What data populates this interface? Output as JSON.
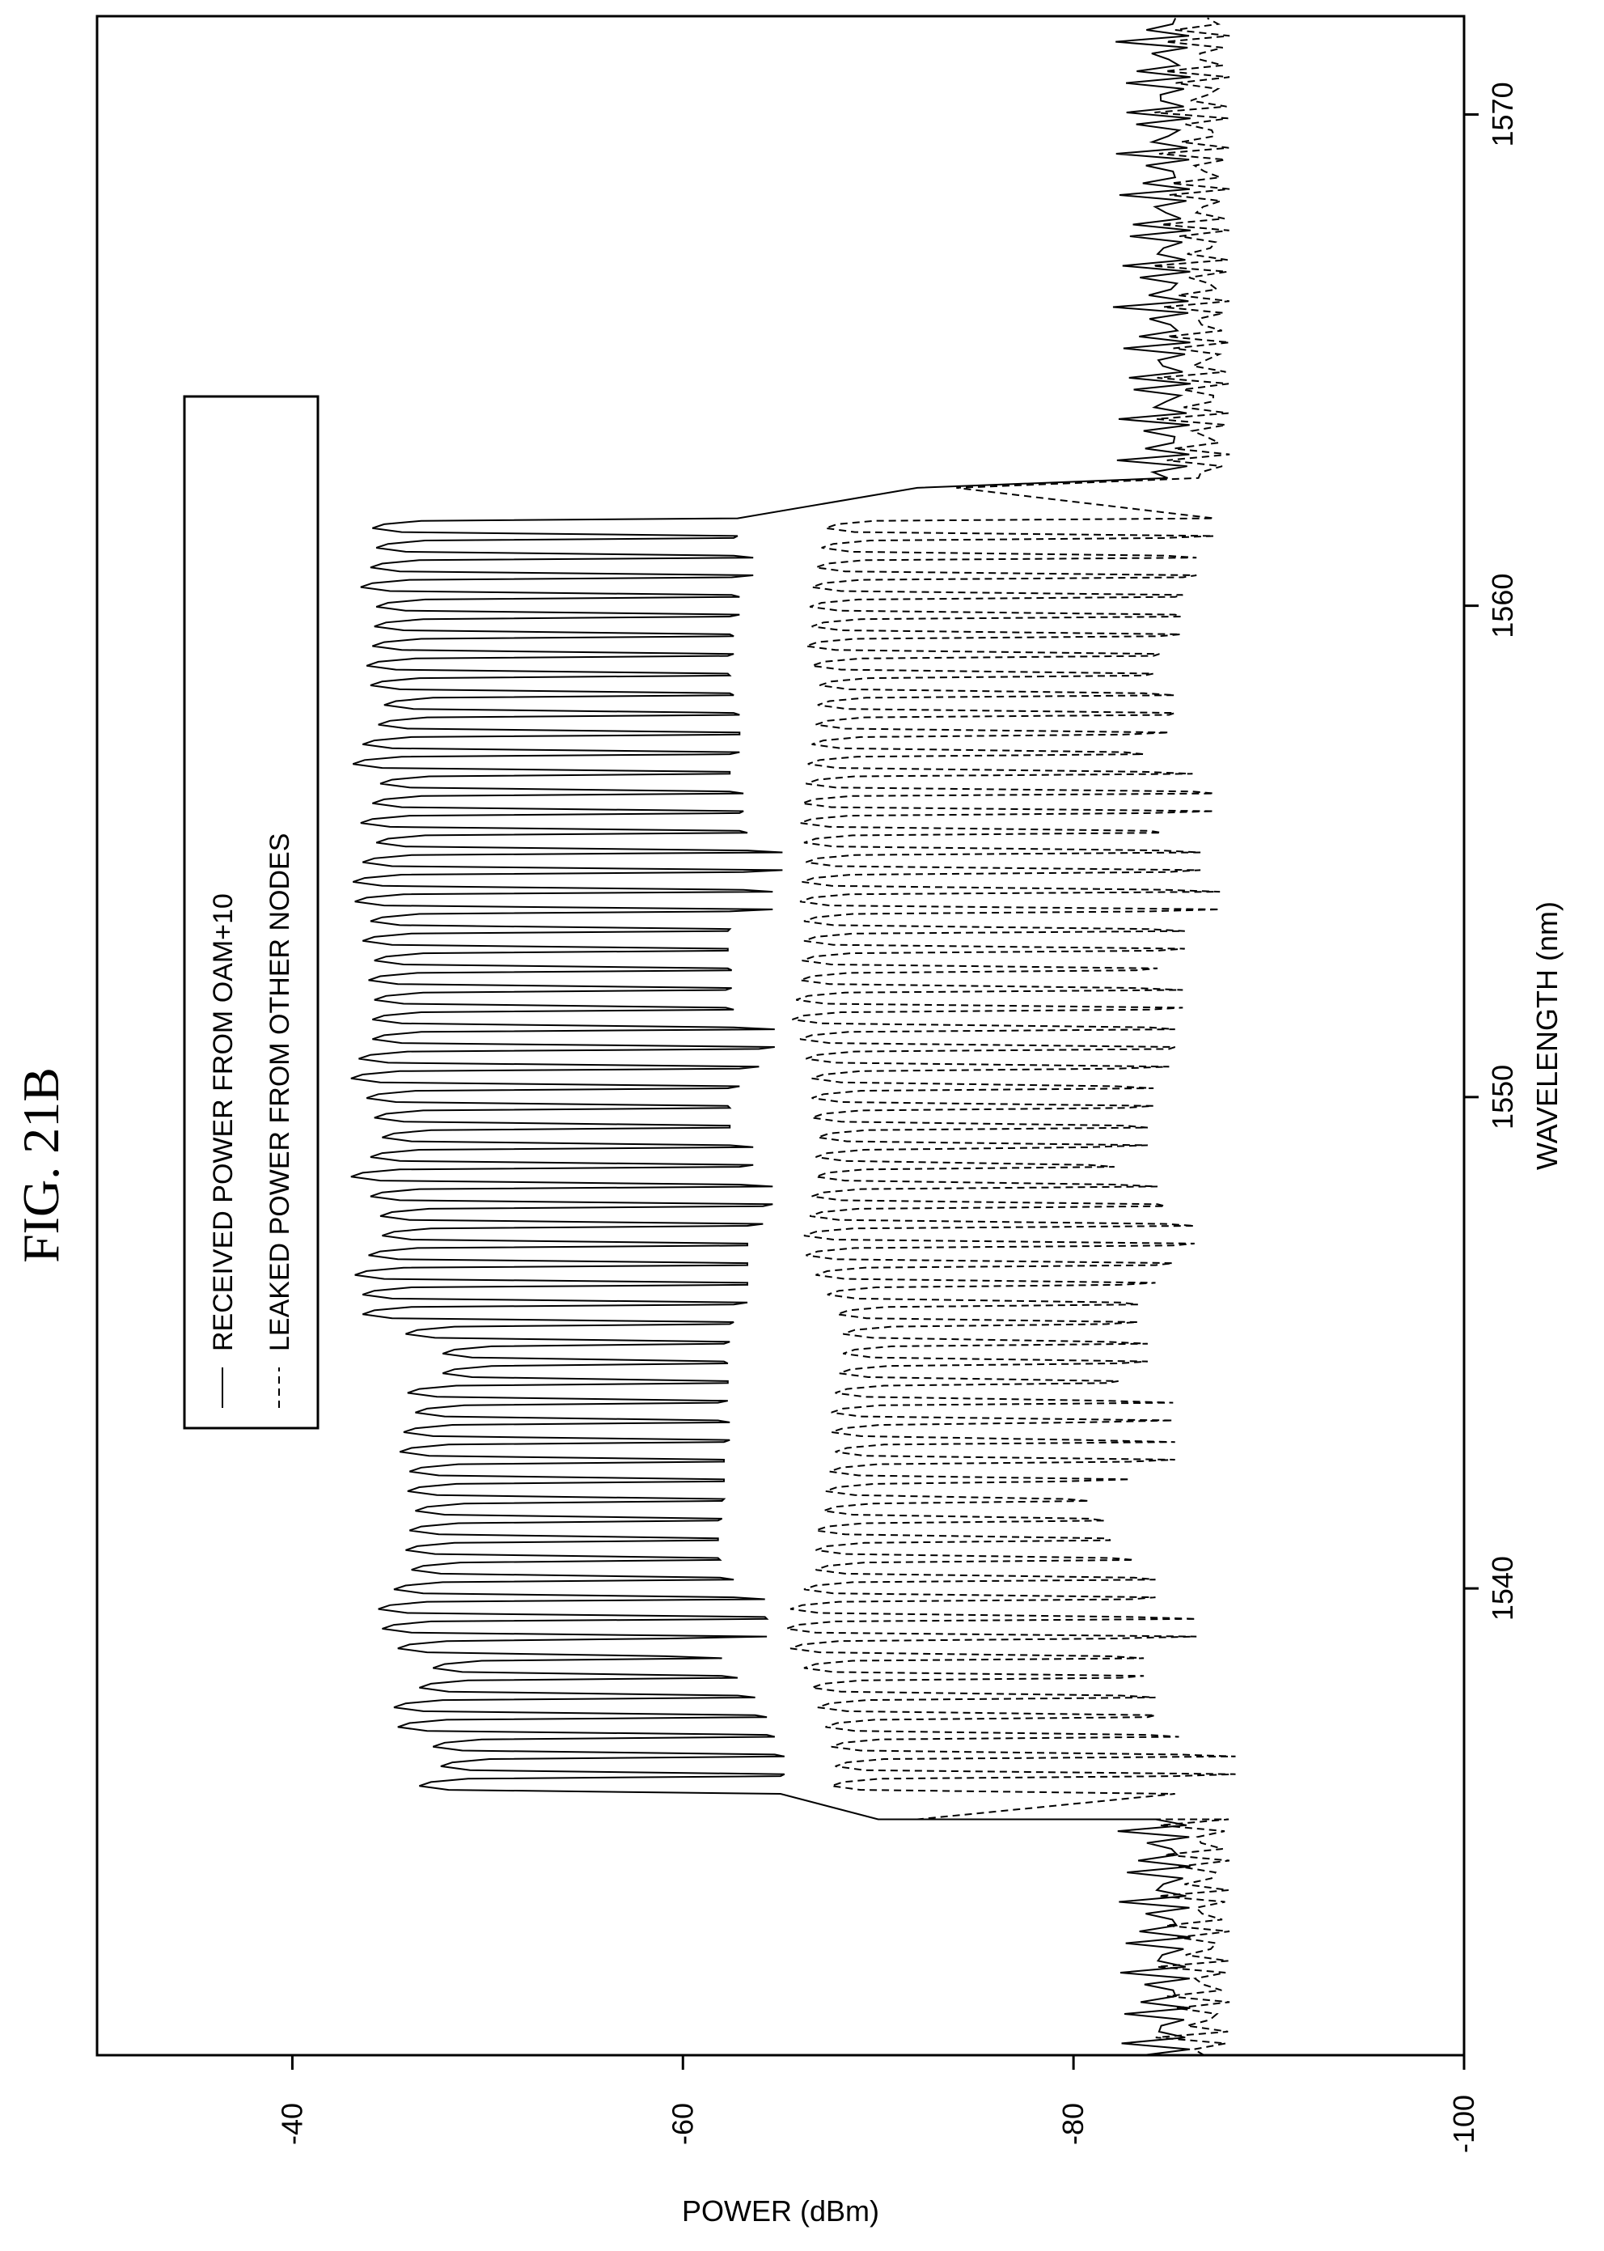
{
  "figure_label": "FIG. 21B",
  "chart_data": {
    "type": "line",
    "xlabel": "WAVELENGTH (nm)",
    "ylabel": "POWER (dBm)",
    "xlim": [
      1530.5,
      1572
    ],
    "ylim": [
      -100,
      -30
    ],
    "x_ticks": [
      1540,
      1550,
      1560,
      1570
    ],
    "y_ticks": [
      -40,
      -60,
      -80,
      -100
    ],
    "x_tick_labels": [
      "1540",
      "1550",
      "1560",
      "1570"
    ],
    "y_tick_labels": [
      "-40",
      "-60",
      "-80",
      "-100"
    ],
    "grid": false,
    "legend_position": "top-left",
    "channel_wavelengths": [
      1536.0,
      1536.4,
      1536.8,
      1537.2,
      1537.6,
      1538.0,
      1538.4,
      1538.8,
      1539.2,
      1539.6,
      1540.0,
      1540.4,
      1540.8,
      1541.2,
      1541.6,
      1542.0,
      1542.4,
      1542.8,
      1543.2,
      1543.6,
      1544.0,
      1544.4,
      1544.8,
      1545.2,
      1545.6,
      1546.0,
      1546.4,
      1546.8,
      1547.2,
      1547.6,
      1548.0,
      1548.4,
      1548.8,
      1549.2,
      1549.6,
      1550.0,
      1550.4,
      1550.8,
      1551.2,
      1551.6,
      1552.0,
      1552.4,
      1552.8,
      1553.2,
      1553.6,
      1554.0,
      1554.4,
      1554.8,
      1555.2,
      1555.6,
      1556.0,
      1556.4,
      1556.8,
      1557.2,
      1557.6,
      1558.0,
      1558.4,
      1558.8,
      1559.2,
      1559.6,
      1560.0,
      1560.4,
      1560.8,
      1561.2,
      1561.6,
      1562.0,
      1562.4,
      1562.8,
      1563.2,
      1563.6,
      1564.0,
      1564.4,
      1564.8,
      1565.2,
      1565.6,
      1566.0,
      1566.4,
      1566.8,
      1567.2,
      1567.6,
      1568.0
    ],
    "series": [
      {
        "name": "RECEIVED POWER FROM OAM+10",
        "style": "solid",
        "peaks": [
          -46.5,
          -47.6,
          -47.2,
          -45.4,
          -45.2,
          -46.5,
          -47.2,
          -45.4,
          -44.6,
          -44.4,
          -45.2,
          -46.1,
          -45.8,
          -46.0,
          -46.3,
          -45.9,
          -46.0,
          -45.5,
          -45.7,
          -46.3,
          -45.9,
          -47.7,
          -47.7,
          -45.8,
          -43.6,
          -43.6,
          -43.2,
          -43.9,
          -44.6,
          -44.5,
          -44.0,
          -43.0,
          -44.0,
          -44.6,
          -44.2,
          -43.8,
          -43.0,
          -43.4,
          -44.1,
          -44.1,
          -44.2,
          -43.9,
          -44.2,
          -43.6,
          -44.0,
          -43.2,
          -43.1,
          -43.6,
          -44.3,
          -43.5,
          -44.1,
          -44.5,
          -43.1,
          -43.6,
          -44.4,
          -44.7,
          -44.0,
          -43.8,
          -44.1,
          -44.2,
          -44.3,
          -43.5,
          -44.0,
          -44.3,
          -44.1
        ],
        "troughs": [
          -65.0,
          -65.2,
          -64.7,
          -64.3,
          -63.7,
          -62.8,
          -62.0,
          -59.1,
          -64.3,
          -64.2,
          -62.6,
          -61.9,
          -61.8,
          -61.8,
          -62.0,
          -62.1,
          -62.1,
          -62.1,
          -62.4,
          -61.8,
          -62.3,
          -62.3,
          -62.1,
          -62.4,
          -62.6,
          -63.3,
          -63.3,
          -63.3,
          -63.3,
          -64.1,
          -64.6,
          -62.9,
          -63.6,
          -62.4,
          -62.4,
          -62.3,
          -62.9,
          -63.9,
          -64.7,
          -62.6,
          -62.2,
          -62.5,
          -62.3,
          -62.3,
          -62.4,
          -64.6,
          -63.1,
          -65.1,
          -63.3,
          -62.9,
          -63.1,
          -62.4,
          -62.4,
          -62.9,
          -62.9,
          -62.6,
          -62.4,
          -62.3,
          -62.6,
          -62.4,
          -62.9,
          -62.5,
          -63.6,
          -62.6,
          -62.8
        ]
      },
      {
        "name": "LEAKED POWER FROM OTHER NODES",
        "style": "dashed",
        "peaks": [
          -67.6,
          -67.8,
          -67.6,
          -67.3,
          -66.9,
          -66.6,
          -66.2,
          -65.5,
          -65.3,
          -65.5,
          -66.2,
          -66.8,
          -66.8,
          -66.8,
          -67.2,
          -67.3,
          -67.5,
          -67.8,
          -67.6,
          -67.6,
          -67.8,
          -68.0,
          -68.2,
          -68.2,
          -67.9,
          -67.4,
          -66.8,
          -66.3,
          -66.2,
          -66.5,
          -66.6,
          -66.8,
          -66.8,
          -66.9,
          -66.6,
          -66.6,
          -66.6,
          -66.3,
          -66.0,
          -65.6,
          -65.8,
          -66.0,
          -66.1,
          -66.2,
          -66.2,
          -66.0,
          -66.1,
          -66.3,
          -66.2,
          -66.0,
          -66.1,
          -66.3,
          -66.4,
          -66.6,
          -66.8,
          -66.9,
          -67.0,
          -66.6,
          -66.3,
          -66.6,
          -66.5,
          -66.6,
          -66.8,
          -67.1,
          -67.3
        ],
        "troughs": [
          -85.2,
          -88.3,
          -85.4,
          -83.8,
          -84.2,
          -82.4,
          -83.6,
          -81.8,
          -86.3,
          -83.0,
          -84.2,
          -83.1,
          -81.9,
          -81.6,
          -80.8,
          -79.6,
          -82.9,
          -85.2,
          -80.5,
          -85.1,
          -81.7,
          -82.3,
          -83.8,
          -81.7,
          -83.3,
          -82.4,
          -84.2,
          -85.1,
          -86.2,
          -84.7,
          -84.3,
          -82.1,
          -80.8,
          -83.8,
          -82.6,
          -84.1,
          -82.2,
          -84.9,
          -85.2,
          -83.9,
          -85.6,
          -83.2,
          -84.3,
          -85.7,
          -83.8,
          -87.5,
          -84.7,
          -86.5,
          -84.5,
          -83.9,
          -87.2,
          -86.1,
          -83.6,
          -82.6,
          -84.9,
          -85.2,
          -83.6,
          -84.1,
          -84.4,
          -85.5,
          -85.2,
          -85.6,
          -86.3,
          -84.7,
          -87.2,
          -85.9,
          -83.7,
          -86.5,
          -83.6,
          -85.4,
          -84.1,
          -82.6,
          -83.1,
          -85.4,
          -83.5,
          -84.3,
          -82.7,
          -84.8,
          -82.9,
          -88.2,
          -89.6
        ]
      }
    ]
  }
}
